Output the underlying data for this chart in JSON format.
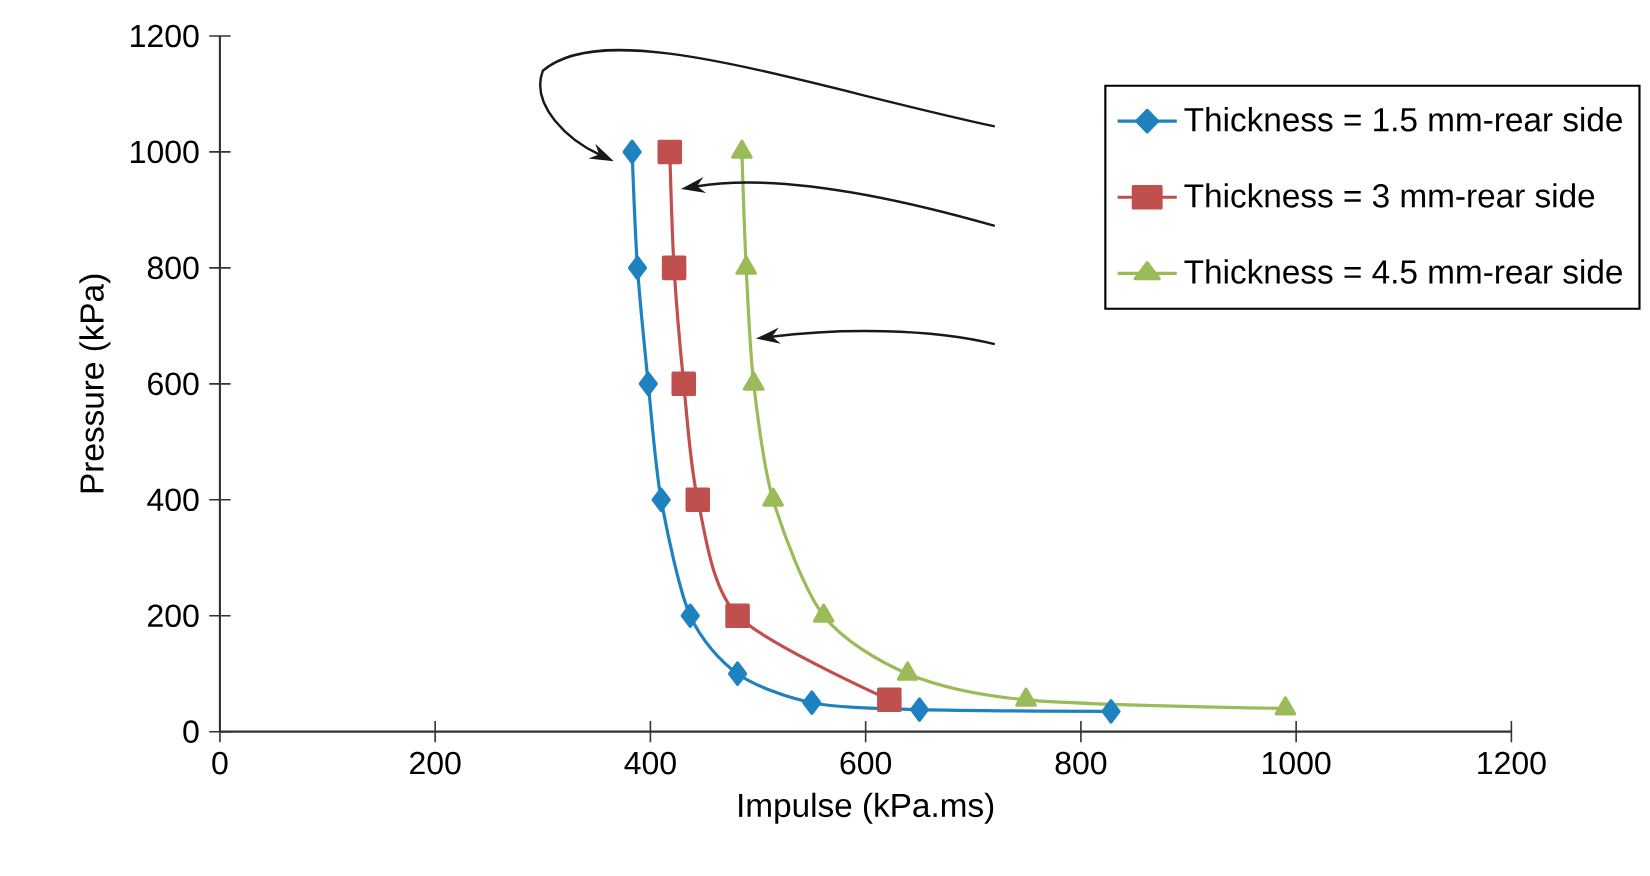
{
  "chart_data": {
    "type": "line",
    "xlabel": "Impulse (kPa.ms)",
    "ylabel": "Pressure (kPa)",
    "xlim": [
      0,
      1200
    ],
    "ylim": [
      0,
      1200
    ],
    "xticks": [
      0,
      200,
      400,
      600,
      800,
      1000,
      1200
    ],
    "yticks": [
      0,
      200,
      400,
      600,
      800,
      1000,
      1200
    ],
    "legend": "top right",
    "line_style": "solid",
    "series": [
      {
        "name": "Thickness = 1.5 mm-rear side",
        "color": "#1f82c0",
        "marker": "diamond",
        "x": [
          383,
          388,
          398,
          410,
          437,
          481,
          550,
          650,
          828
        ],
        "values": [
          1000,
          800,
          600,
          400,
          200,
          100,
          50,
          38,
          35
        ]
      },
      {
        "name": "Thickness = 3 mm-rear side",
        "color": "#c0504d",
        "marker": "square",
        "x": [
          418,
          422,
          431,
          444,
          481,
          622
        ],
        "values": [
          1000,
          800,
          600,
          400,
          200,
          55
        ]
      },
      {
        "name": "Thickness = 4.5 mm-rear side",
        "color": "#9bbb59",
        "marker": "triangle",
        "x": [
          485,
          489,
          496,
          514,
          561,
          639,
          749,
          990
        ],
        "values": [
          1000,
          800,
          600,
          400,
          200,
          100,
          55,
          40
        ]
      }
    ]
  }
}
